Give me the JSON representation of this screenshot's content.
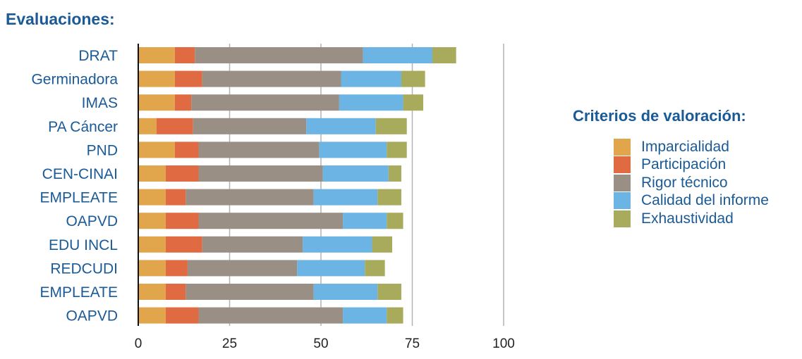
{
  "title": "Evaluaciones:",
  "legend_title": "Criterios de valoración:",
  "colors": {
    "Imparcialidad": "#E1A54C",
    "Participación": "#E06A41",
    "Rigor técnico": "#998F85",
    "Calidad del informe": "#6CB4E4",
    "Exhaustividad": "#A8AA5C"
  },
  "chart_data": {
    "type": "bar",
    "orientation": "horizontal",
    "stacked": true,
    "categories": [
      "DRAT",
      "Germinadora",
      "IMAS",
      "PA Cáncer",
      "PND",
      "CEN-CINAI",
      "EMPLEATE",
      "OAPVD",
      "EDU INCL",
      "REDCUDI",
      "EMPLEATE",
      "OAPVD"
    ],
    "series": [
      {
        "name": "Imparcialidad",
        "values": [
          10,
          10,
          10,
          5,
          10,
          7.5,
          7.5,
          7.5,
          7.5,
          7.5,
          7.5,
          7.5
        ]
      },
      {
        "name": "Participación",
        "values": [
          5.5,
          7.5,
          4.5,
          10,
          6.5,
          9,
          5.5,
          9,
          10,
          6,
          5.5,
          9
        ]
      },
      {
        "name": "Rigor técnico",
        "values": [
          46,
          38,
          40.5,
          31,
          33,
          34,
          35,
          39.5,
          27.5,
          30,
          35,
          39.5
        ]
      },
      {
        "name": "Calidad del informe",
        "values": [
          19,
          16.5,
          17.5,
          19,
          18.5,
          18,
          17.5,
          12,
          19,
          18.5,
          17.5,
          12
        ]
      },
      {
        "name": "Exhaustividad",
        "values": [
          6.5,
          6.5,
          5.5,
          8.5,
          5.5,
          3.5,
          6.5,
          4.5,
          5.5,
          5.5,
          6.5,
          4.5
        ]
      }
    ],
    "xlim": [
      0,
      100
    ],
    "xticks": [
      0,
      25,
      50,
      75,
      100
    ],
    "grid": "vertical",
    "legend_position": "right"
  }
}
